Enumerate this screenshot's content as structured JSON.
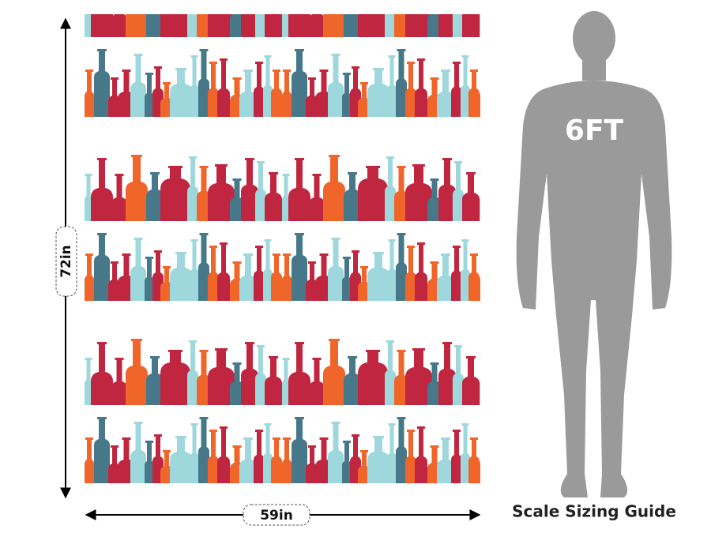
{
  "height_label": "72in",
  "width_label": "59in",
  "figure_label": "6FT",
  "guide_title": "Scale Sizing Guide"
}
